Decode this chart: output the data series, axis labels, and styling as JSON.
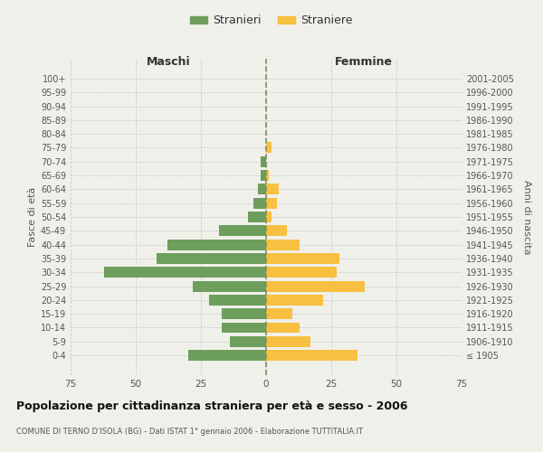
{
  "age_groups": [
    "100+",
    "95-99",
    "90-94",
    "85-89",
    "80-84",
    "75-79",
    "70-74",
    "65-69",
    "60-64",
    "55-59",
    "50-54",
    "45-49",
    "40-44",
    "35-39",
    "30-34",
    "25-29",
    "20-24",
    "15-19",
    "10-14",
    "5-9",
    "0-4"
  ],
  "birth_years": [
    "≤ 1905",
    "1906-1910",
    "1911-1915",
    "1916-1920",
    "1921-1925",
    "1926-1930",
    "1931-1935",
    "1936-1940",
    "1941-1945",
    "1946-1950",
    "1951-1955",
    "1956-1960",
    "1961-1965",
    "1966-1970",
    "1971-1975",
    "1976-1980",
    "1981-1985",
    "1986-1990",
    "1991-1995",
    "1996-2000",
    "2001-2005"
  ],
  "males": [
    0,
    0,
    0,
    0,
    0,
    0,
    2,
    2,
    3,
    5,
    7,
    18,
    38,
    42,
    62,
    28,
    22,
    17,
    17,
    14,
    30
  ],
  "females": [
    0,
    0,
    0,
    0,
    0,
    2,
    0,
    1,
    5,
    4,
    2,
    8,
    13,
    28,
    27,
    38,
    22,
    10,
    13,
    17,
    35
  ],
  "male_color": "#6e9e5c",
  "female_color": "#f7c040",
  "background_color": "#f0f0eb",
  "grid_color": "#cccccc",
  "center_line_color": "#8a8a5a",
  "title": "Popolazione per cittadinanza straniera per età e sesso - 2006",
  "subtitle": "COMUNE DI TERNO D'ISOLA (BG) - Dati ISTAT 1° gennaio 2006 - Elaborazione TUTTITALIA.IT",
  "xlabel_left": "Maschi",
  "xlabel_right": "Femmine",
  "ylabel_left": "Fasce di età",
  "ylabel_right": "Anni di nascita",
  "legend_male": "Stranieri",
  "legend_female": "Straniere",
  "xlim": 75
}
